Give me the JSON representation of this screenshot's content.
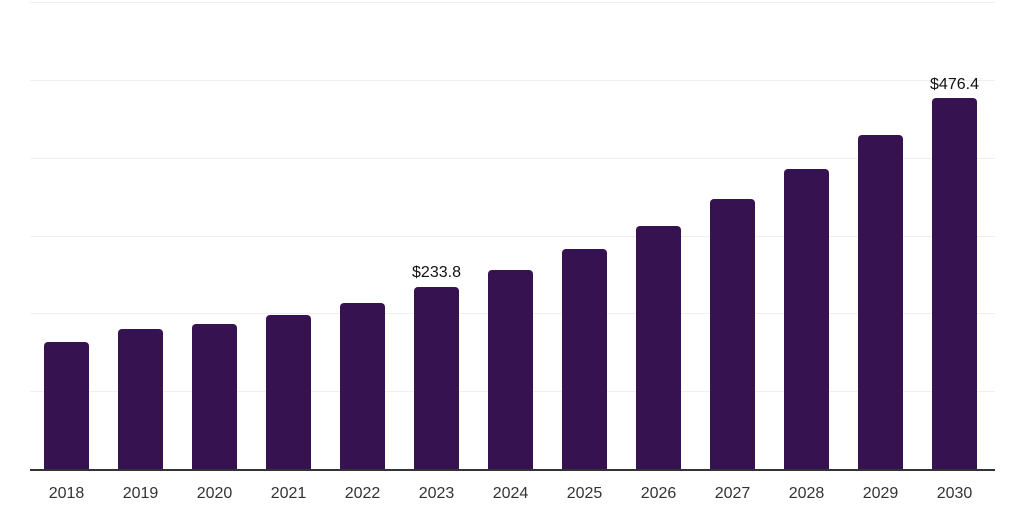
{
  "chart_data": {
    "type": "bar",
    "title": "",
    "xlabel": "",
    "ylabel": "",
    "categories": [
      "2018",
      "2019",
      "2020",
      "2021",
      "2022",
      "2023",
      "2024",
      "2025",
      "2026",
      "2027",
      "2028",
      "2029",
      "2030"
    ],
    "values": [
      163.5,
      180.4,
      186.7,
      198.2,
      212.7,
      233.8,
      256.0,
      282.4,
      312.9,
      347.4,
      384.9,
      428.6,
      476.4
    ],
    "data_labels": [
      "",
      "",
      "",
      "",
      "",
      "$233.8",
      "",
      "",
      "",
      "",
      "",
      "",
      "$476.4"
    ],
    "ylim": [
      0,
      600
    ],
    "grid_step": 100,
    "grid": true,
    "legend": false,
    "y_axis_labels_visible": false,
    "colors": {
      "bar": "#361250",
      "axis": "#333333",
      "gridline": "#efefef",
      "tick_label": "#333333",
      "data_label": "#111111",
      "background": "#ffffff"
    }
  }
}
